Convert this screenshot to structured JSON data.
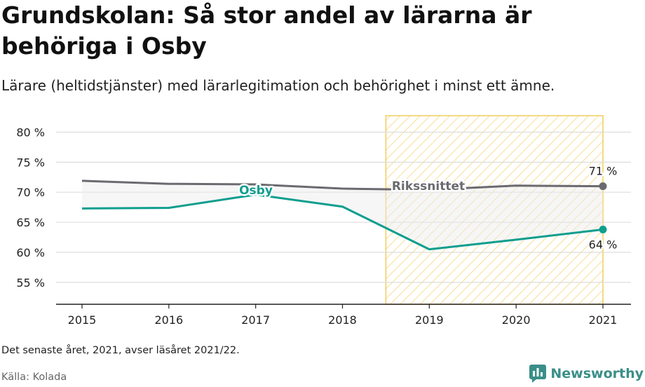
{
  "header": {
    "title": "Grundskolan: Så stor andel av lärarna är behöriga i Osby",
    "subtitle": "Lärare (heltidstjänster) med lärarlegitimation och behörighet i minst ett ämne."
  },
  "footer": {
    "note": "Det senaste året, 2021, avser läsåret 2021/22.",
    "source": "Källa: Kolada",
    "brand": "Newsworthy",
    "brand_icon": "bar-chart-logo-icon"
  },
  "colors": {
    "osby": "#0f9e8e",
    "riket": "#6b6a70",
    "highlight_border": "#f2cd5c",
    "highlight_hatch": "#f7de97",
    "grid": "#dddddd",
    "brand": "#3a8f88"
  },
  "chart_data": {
    "type": "line",
    "x": [
      2015,
      2016,
      2017,
      2018,
      2019,
      2020,
      2021
    ],
    "series": [
      {
        "name": "Osby",
        "values": [
          67.3,
          67.4,
          69.6,
          67.6,
          60.5,
          62.1,
          63.8
        ],
        "end_label": "64 %"
      },
      {
        "name": "Rikssnittet",
        "values": [
          71.9,
          71.4,
          71.3,
          70.6,
          70.4,
          71.1,
          71.0
        ],
        "end_label": "71 %"
      }
    ],
    "y_ticks": [
      55,
      60,
      65,
      70,
      75,
      80
    ],
    "y_tick_labels": [
      "55 %",
      "60 %",
      "65 %",
      "70 %",
      "75 %",
      "80 %"
    ],
    "x_tick_labels": [
      "2015",
      "2016",
      "2017",
      "2018",
      "2019",
      "2020",
      "2021"
    ],
    "ylim": [
      51.5,
      82.5
    ],
    "highlight_range": [
      2018.5,
      2021
    ],
    "grid": true,
    "xlabel": "",
    "ylabel": ""
  }
}
